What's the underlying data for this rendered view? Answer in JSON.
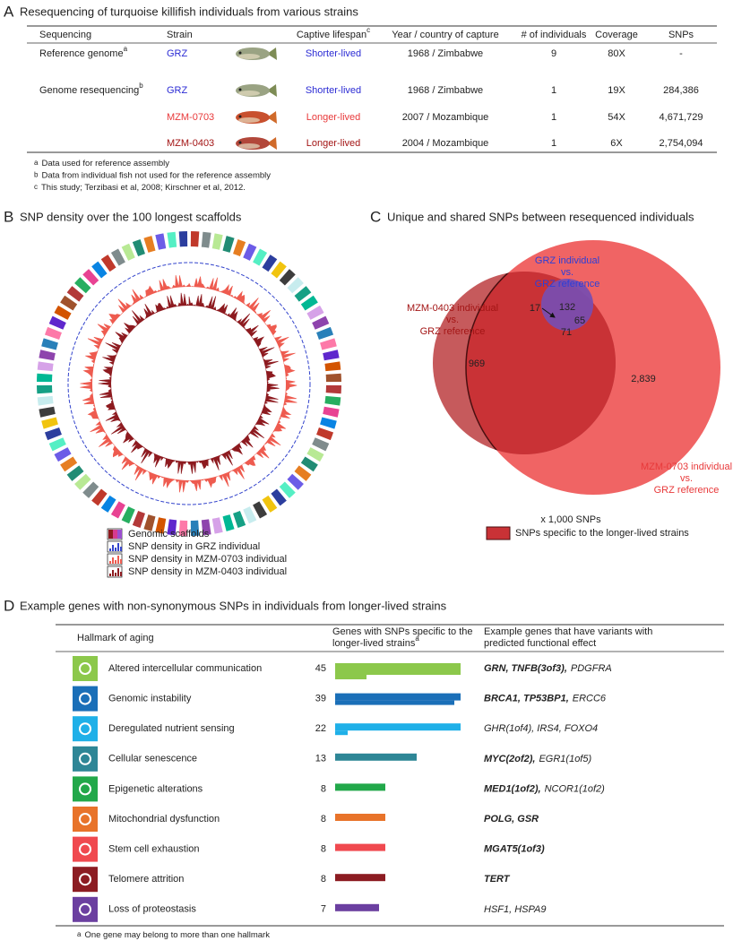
{
  "panel_a": {
    "label": "A",
    "title": "Resequencing of turquoise killifish individuals from various strains",
    "columns": [
      {
        "text": "Sequencing"
      },
      {
        "text": "Strain"
      },
      {
        "text": "Captive lifespan",
        "note": "c"
      },
      {
        "text": "Year / country of capture"
      },
      {
        "text": "# of individuals"
      },
      {
        "text": "Coverage"
      },
      {
        "text": "SNPs"
      }
    ],
    "rows": [
      {
        "sequencing": "Reference genome",
        "sequencing_note": "a",
        "strain": "GRZ",
        "lifespan": "Shorter-lived",
        "color": "#2b2bd4",
        "capture": "1968 / Zimbabwe",
        "individuals": "9",
        "coverage": "80X",
        "snps": "-"
      },
      {
        "sequencing": "Genome resequencing",
        "sequencing_note": "b",
        "strain": "GRZ",
        "lifespan": "Shorter-lived",
        "color": "#2b2bd4",
        "capture": "1968 / Zimbabwe",
        "individuals": "1",
        "coverage": "19X",
        "snps": "284,386"
      },
      {
        "strain": "MZM-0703",
        "lifespan": "Longer-lived",
        "color": "#e8393a",
        "capture": "2007 / Mozambique",
        "individuals": "1",
        "coverage": "54X",
        "snps": "4,671,729"
      },
      {
        "strain": "MZM-0403",
        "lifespan": "Longer-lived",
        "color": "#a31515",
        "capture": "2004 / Mozambique",
        "individuals": "1",
        "coverage": "6X",
        "snps": "2,754,094"
      }
    ],
    "footnotes": [
      {
        "mark": "a",
        "text": "Data used for reference assembly"
      },
      {
        "mark": "b",
        "text": "Data from individual fish not used for the reference assembly"
      },
      {
        "mark": "c",
        "text": "This study; Terzibasi et al, 2008; Kirschner et al, 2012."
      }
    ]
  },
  "panel_b": {
    "label": "B",
    "title": "SNP density over the 100 longest scaffolds",
    "legend": [
      "Genomic scaffolds",
      "SNP density in GRZ individual",
      "SNP density in MZM-0703 individual",
      "SNP density in MZM-0403 individual"
    ]
  },
  "panel_c": {
    "label": "C",
    "title": "Unique and shared SNPs between resequenced individuals",
    "set_labels": {
      "grz": [
        "GRZ individual",
        "vs.",
        "GRZ reference"
      ],
      "mzm0403": [
        "MZM-0403 individual",
        "vs.",
        "GRZ reference"
      ],
      "mzm0703": [
        "MZM-0703 individual",
        "vs.",
        "GRZ reference"
      ]
    },
    "counts": {
      "grz_only": "132",
      "grz_0703": "65",
      "grz_0403": "17",
      "all_three": "71",
      "only_0403": "969",
      "only_0703": "2,839"
    },
    "unit": "x 1,000 SNPs",
    "legend": "SNPs specific to the longer-lived strains"
  },
  "panel_d": {
    "label": "D",
    "title": "Example genes with non-synonymous SNPs in individuals from longer-lived strains",
    "headers": {
      "hallmark": "Hallmark of aging",
      "genes": [
        "Genes with SNPs specific to the",
        "longer-lived strains"
      ],
      "genes_note": "a",
      "examples": [
        "Example genes that have variants with",
        "predicted functional effect"
      ]
    },
    "rows": [
      {
        "hallmark": "Altered intercellular communication",
        "count": 45,
        "color": "#8cc84b",
        "bold": "GRN, TNFB(3of3),",
        "plain": "PDGFRA"
      },
      {
        "hallmark": "Genomic instability",
        "count": 39,
        "color": "#1a6fb8",
        "bold": "BRCA1, TP53BP1,",
        "plain": "ERCC6"
      },
      {
        "hallmark": "Deregulated nutrient sensing",
        "count": 22,
        "color": "#1fb0e8",
        "plain": "GHR(1of4), IRS4, FOXO4"
      },
      {
        "hallmark": "Cellular senescence",
        "count": 13,
        "color": "#2e8696",
        "bold": "MYC(2of2),",
        "plain": "EGR1(1of5)"
      },
      {
        "hallmark": "Epigenetic alterations",
        "count": 8,
        "color": "#22a84a",
        "bold": "MED1(1of2),",
        "plain": "NCOR1(1of2)"
      },
      {
        "hallmark": "Mitochondrial dysfunction",
        "count": 8,
        "color": "#e8732a",
        "bold": "POLG, GSR"
      },
      {
        "hallmark": "Stem cell exhaustion",
        "count": 8,
        "color": "#f0494f",
        "bold": "MGAT5(1of3)"
      },
      {
        "hallmark": "Telomere attrition",
        "count": 8,
        "color": "#8c1c22",
        "bold": "TERT"
      },
      {
        "hallmark": "Loss of proteostasis",
        "count": 7,
        "color": "#6b3fa0",
        "plain": "HSF1, HSPA9"
      }
    ],
    "footnote": {
      "mark": "a",
      "text": "One gene may belong to more than one hallmark"
    }
  }
}
